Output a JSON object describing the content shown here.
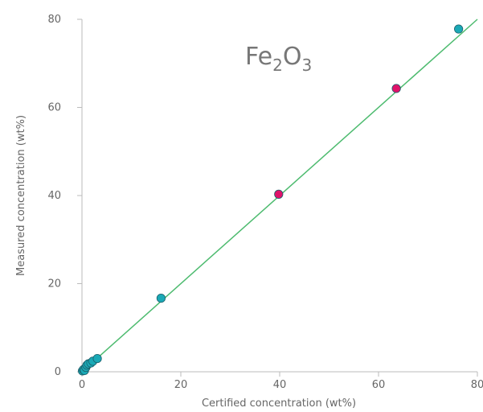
{
  "chart_data": {
    "type": "scatter",
    "title": "Fe",
    "title_sub1": "2",
    "title_mid": "O",
    "title_sub2": "3",
    "xlabel": "Certified concentration (wt%)",
    "ylabel": "Measured concentration (wt%)",
    "xlim": [
      0,
      80
    ],
    "ylim": [
      0,
      80
    ],
    "xticks": [
      "0",
      "20",
      "40",
      "60",
      "80"
    ],
    "yticks": [
      "0",
      "20",
      "40",
      "60",
      "80"
    ],
    "grid": false,
    "colors": {
      "fit_line": "#4dbb6f",
      "teal": "#1aa9b6",
      "magenta": "#e0126a",
      "axis": "#bbbbbb",
      "marker_edge": "#1b5f6a"
    },
    "fit_line": {
      "x": [
        0,
        80
      ],
      "y": [
        0,
        80
      ]
    },
    "series": [
      {
        "color": "teal",
        "points": [
          [
            0.1,
            0.2
          ],
          [
            0.3,
            0.5
          ],
          [
            0.5,
            0.3
          ],
          [
            0.8,
            1.0
          ],
          [
            1.0,
            1.5
          ],
          [
            1.3,
            1.8
          ],
          [
            1.8,
            2.0
          ],
          [
            2.2,
            2.4
          ],
          [
            3.1,
            3.0
          ],
          [
            16.0,
            16.7
          ],
          [
            76.2,
            77.8
          ]
        ]
      },
      {
        "color": "magenta",
        "points": [
          [
            39.8,
            40.3
          ],
          [
            63.6,
            64.3
          ]
        ]
      }
    ]
  }
}
